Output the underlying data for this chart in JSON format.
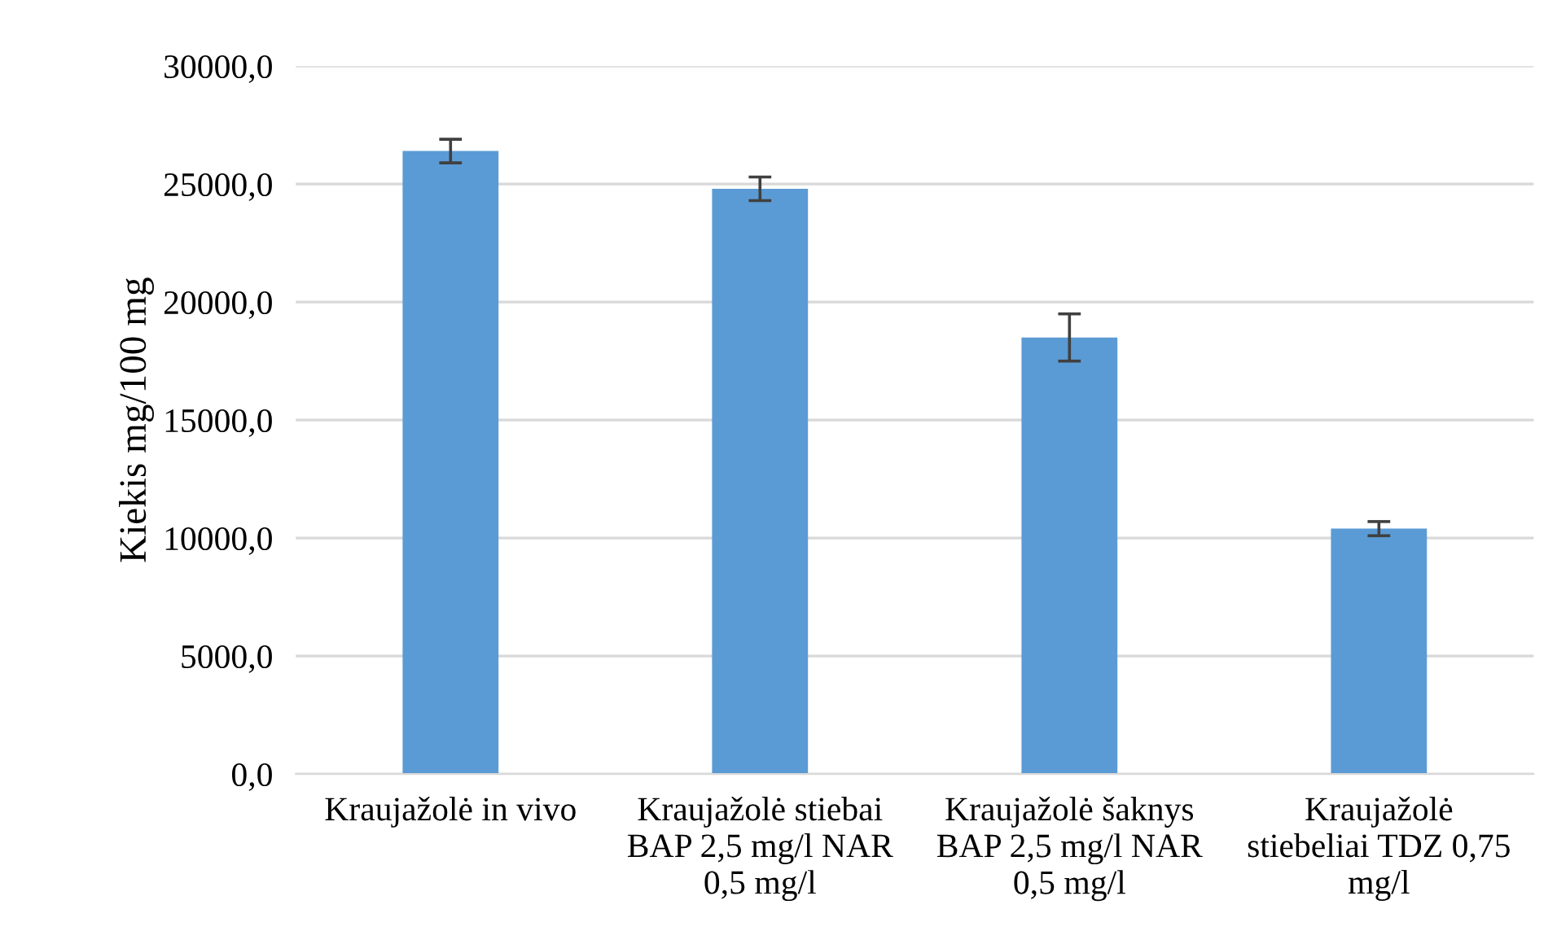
{
  "chart_data": {
    "type": "bar",
    "ylabel": "Kiekis mg/100 mg",
    "categories": [
      "Kraujažolė in vivo",
      "Kraujažolė stiebai\nBAP 2,5 mg/l NAR\n0,5 mg/l",
      "Kraujažolė šaknys\nBAP 2,5 mg/l NAR\n0,5 mg/l",
      "Kraujažolė\nstiebeliai TDZ 0,75\nmg/l"
    ],
    "values": [
      26400,
      24800,
      18500,
      10400
    ],
    "errors": [
      500,
      500,
      1000,
      300
    ],
    "color": "#5b9bd5",
    "ylim": [
      0,
      30000
    ],
    "yticks": [
      {
        "value": 0,
        "label": "0,0"
      },
      {
        "value": 5000,
        "label": "5000,0"
      },
      {
        "value": 10000,
        "label": "10000,0"
      },
      {
        "value": 15000,
        "label": "15000,0"
      },
      {
        "value": 20000,
        "label": "20000,0"
      },
      {
        "value": 25000,
        "label": "25000,0"
      },
      {
        "value": 30000,
        "label": "30000,0"
      }
    ],
    "grid": "y"
  }
}
